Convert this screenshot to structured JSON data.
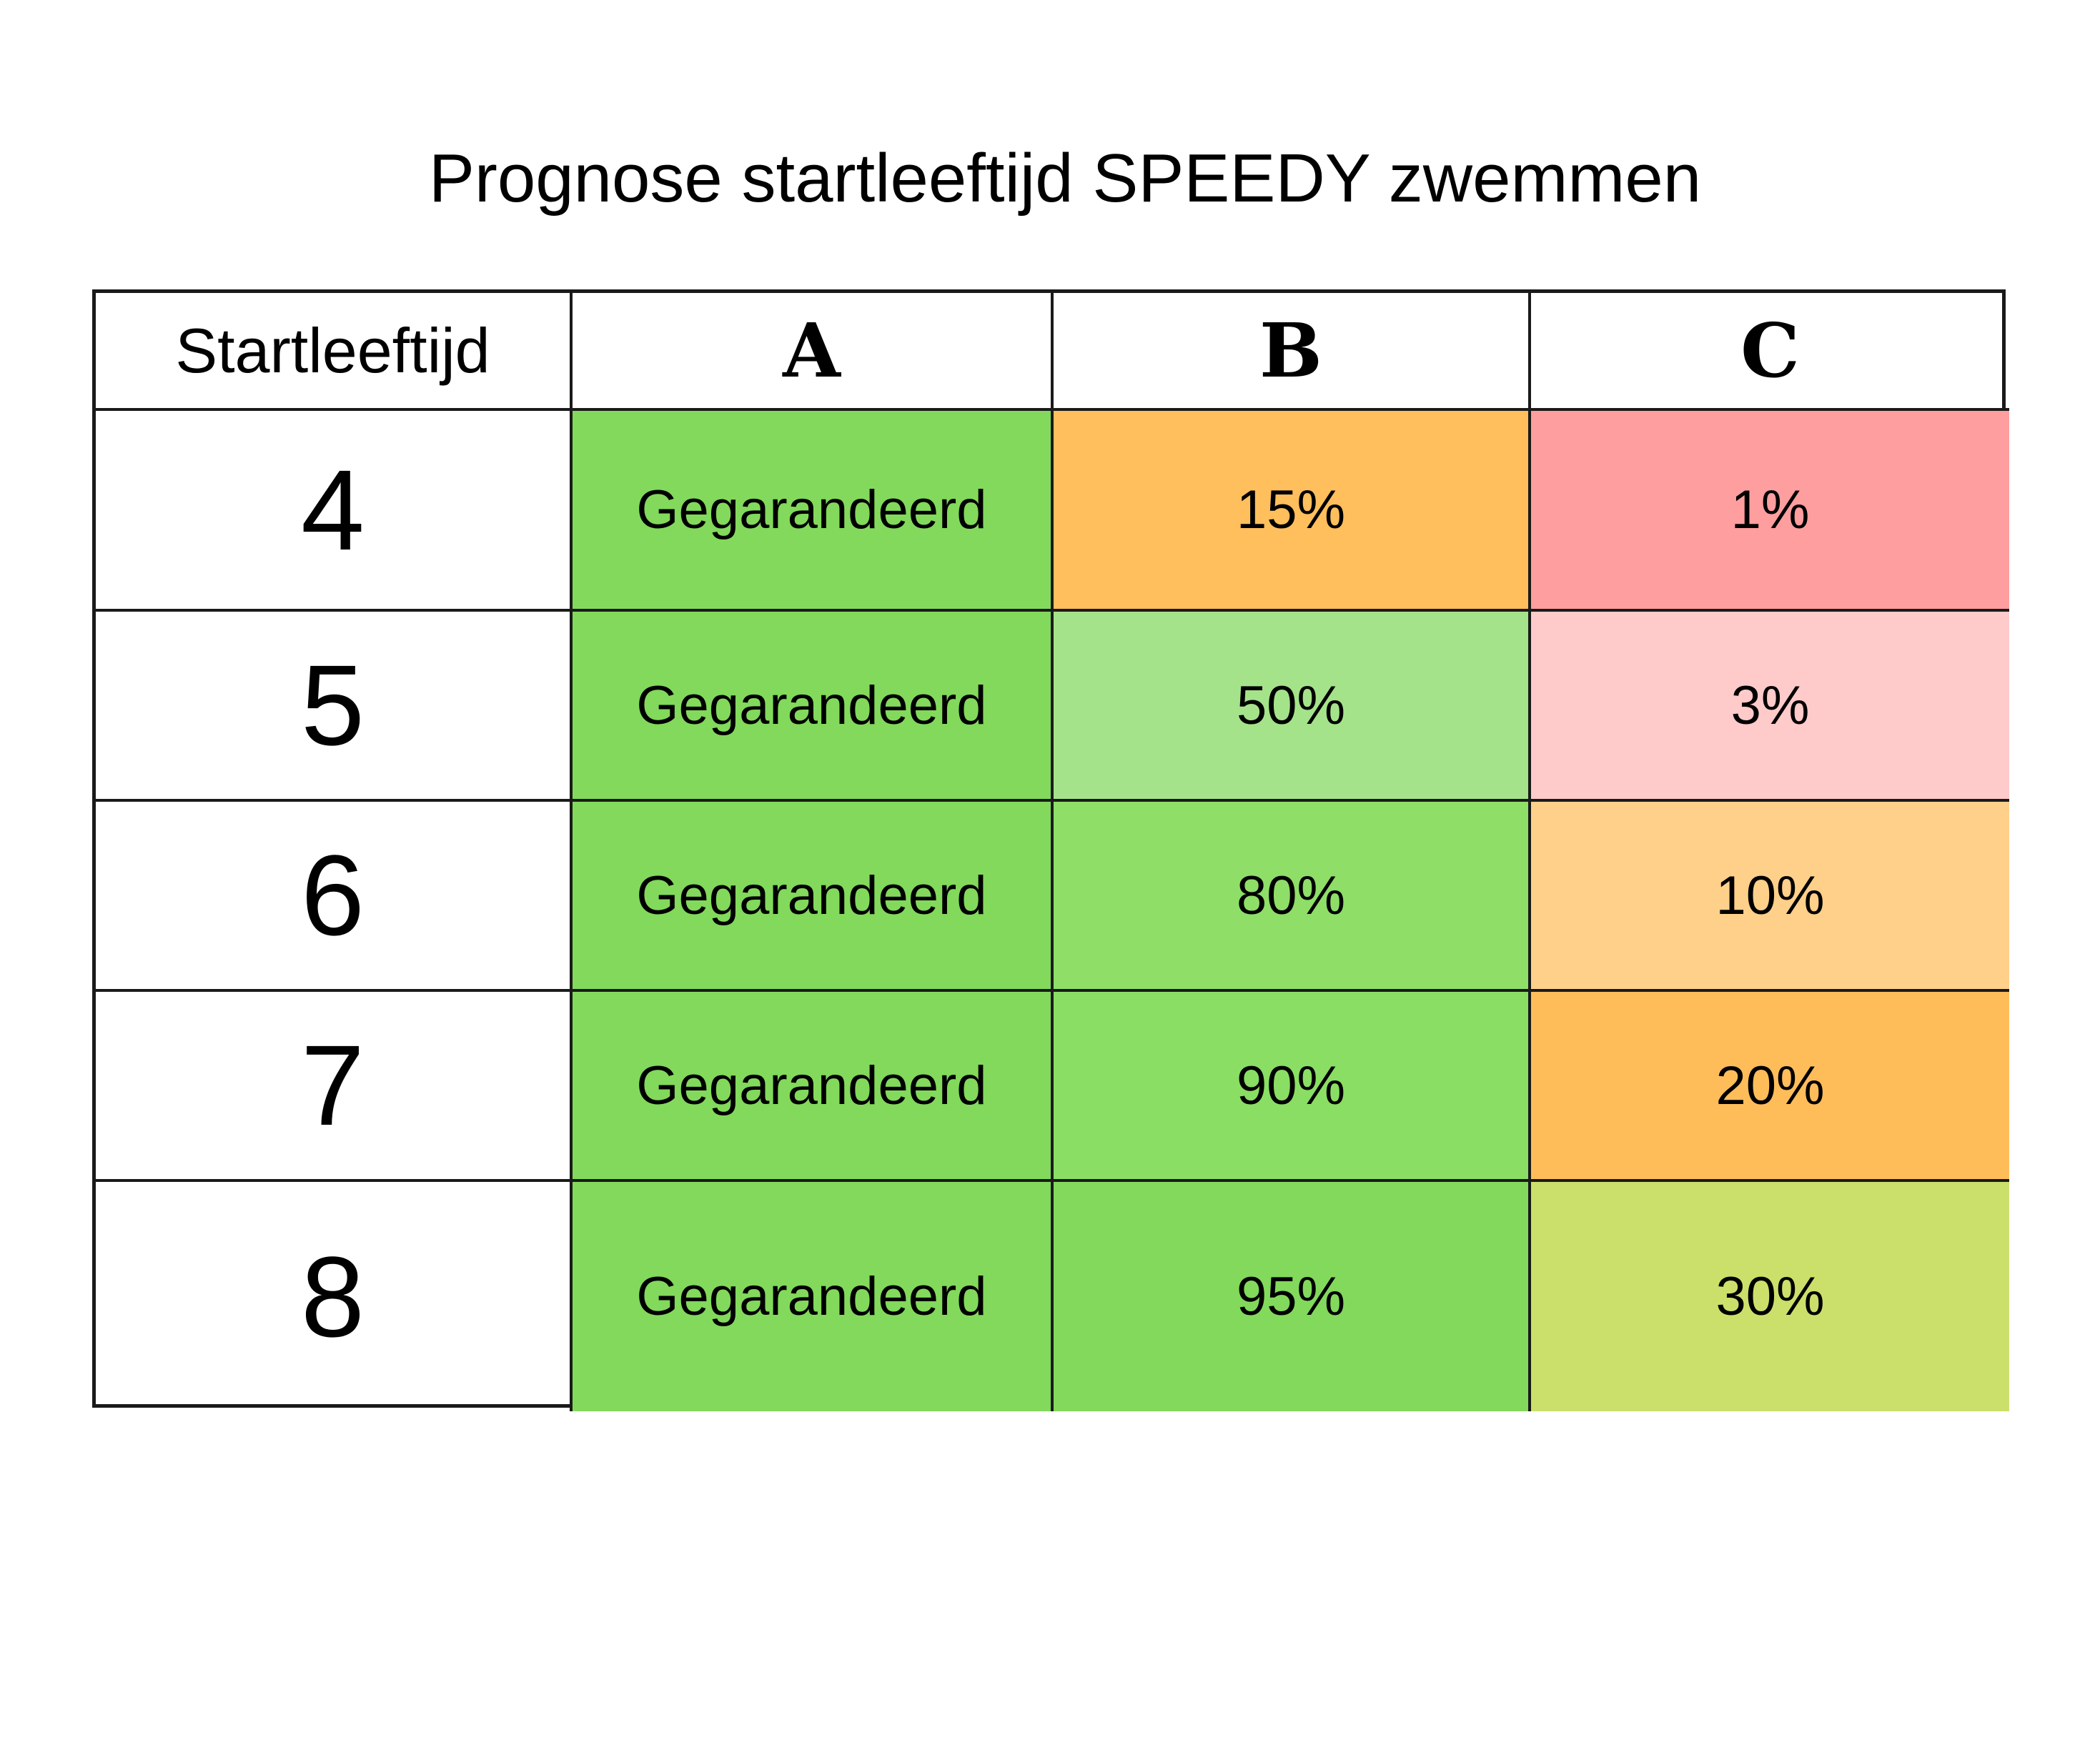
{
  "title": "Prognose startleeftijd SPEEDY zwemmen",
  "table": {
    "header": {
      "age_label": "Startleeftijd",
      "columns": [
        "A",
        "B",
        "C"
      ]
    },
    "rows": [
      {
        "age": "4",
        "cells": [
          {
            "text": "Gegarandeerd",
            "color": "#82d95b"
          },
          {
            "text": "15%",
            "color": "#ffbf5c"
          },
          {
            "text": "1%",
            "color": "#ff9e9e"
          }
        ]
      },
      {
        "age": "5",
        "cells": [
          {
            "text": "Gegarandeerd",
            "color": "#82d95b"
          },
          {
            "text": "50%",
            "color": "#a5e38a"
          },
          {
            "text": "3%",
            "color": "#ffcaca"
          }
        ]
      },
      {
        "age": "6",
        "cells": [
          {
            "text": "Gegarandeerd",
            "color": "#82d95b"
          },
          {
            "text": "80%",
            "color": "#8ede68"
          },
          {
            "text": "10%",
            "color": "#ffd08a"
          }
        ]
      },
      {
        "age": "7",
        "cells": [
          {
            "text": "Gegarandeerd",
            "color": "#82d95b"
          },
          {
            "text": "90%",
            "color": "#8ade64"
          },
          {
            "text": "20%",
            "color": "#ffbd5a"
          }
        ]
      },
      {
        "age": "8",
        "cells": [
          {
            "text": "Gegarandeerd",
            "color": "#82d95b"
          },
          {
            "text": "95%",
            "color": "#82d95b"
          },
          {
            "text": "30%",
            "color": "#cbe06a"
          }
        ]
      }
    ]
  }
}
